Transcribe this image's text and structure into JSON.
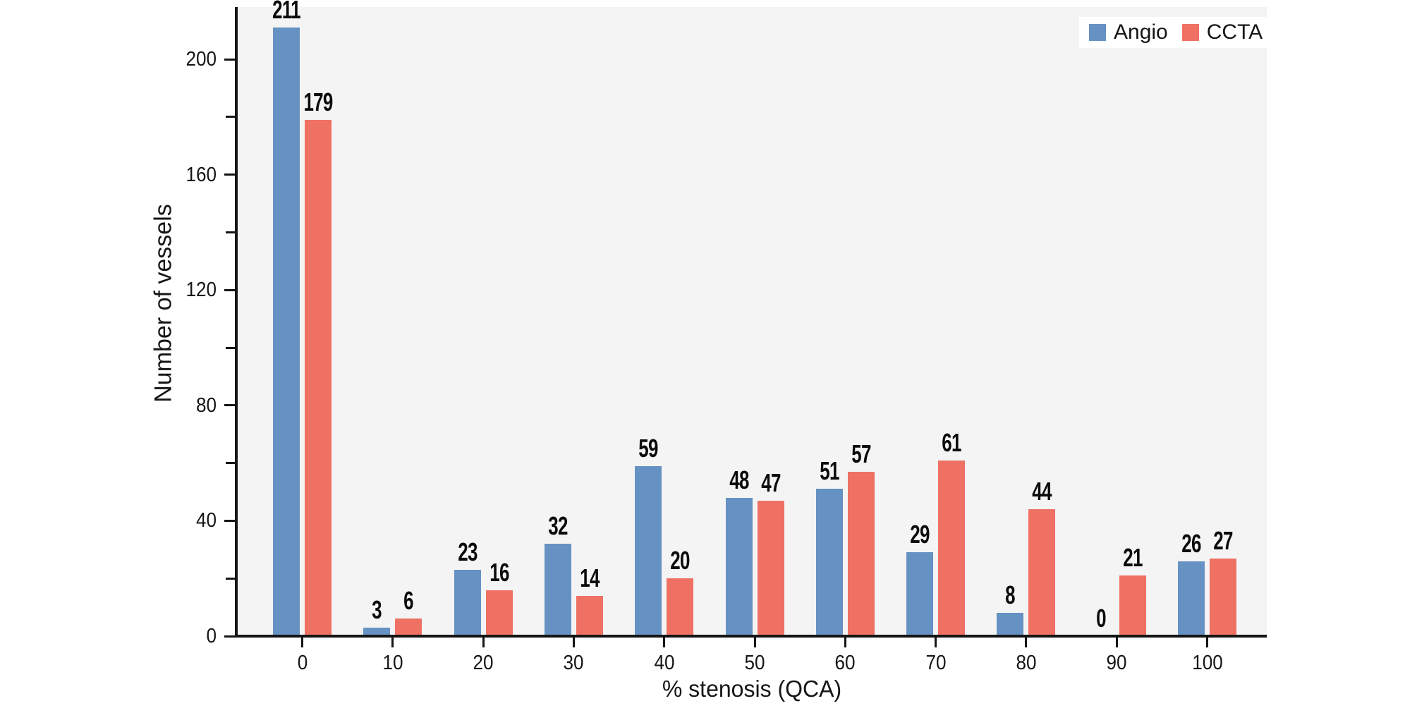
{
  "chart_data": {
    "type": "bar",
    "title": "",
    "categories": [
      "0",
      "10",
      "20",
      "30",
      "40",
      "50",
      "60",
      "70",
      "80",
      "90",
      "100"
    ],
    "series": [
      {
        "name": "Angio",
        "color": "#6592c3",
        "values": [
          211,
          3,
          23,
          32,
          59,
          48,
          51,
          29,
          8,
          0,
          26
        ]
      },
      {
        "name": "CCTA",
        "color": "#ee7164",
        "values": [
          179,
          6,
          16,
          14,
          20,
          47,
          57,
          61,
          44,
          21,
          27
        ]
      }
    ],
    "xlabel": "% stenosis (QCA)",
    "ylabel": "Number of vessels",
    "ylim": [
      0,
      218
    ],
    "yticks_labeled": [
      0,
      40,
      80,
      120,
      160,
      200
    ],
    "yticks_minor": [
      20,
      60,
      100,
      140,
      180
    ],
    "grid": false,
    "bar_value_labels": true,
    "legend_position": "top-right",
    "colors": {
      "plot_background": "#f4f4f4",
      "figure_background": "#ffffff",
      "axis": "#151515",
      "label_text": "#0b0b0b"
    }
  }
}
